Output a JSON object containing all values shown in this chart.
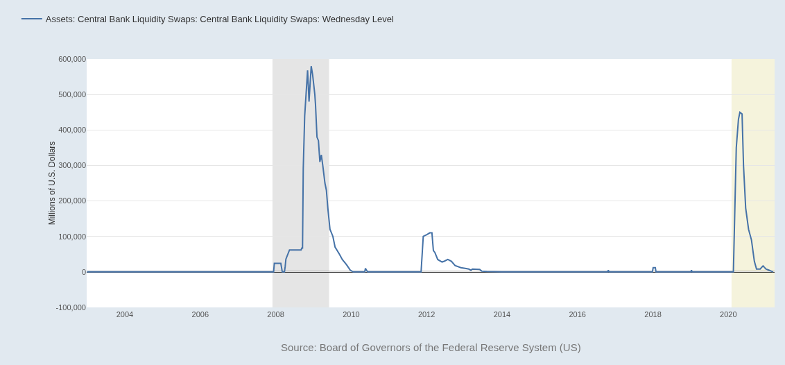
{
  "chart_data": {
    "type": "line",
    "ylabel": "Millions of U.S. Dollars",
    "annotations": [
      "Source: Board of Governors of the Federal Reserve System (US)"
    ],
    "x": [
      "2003-01-01",
      "2007-12-12",
      "2007-12-19",
      "2008-02-20",
      "2008-03-05",
      "2008-03-26",
      "2008-04-02",
      "2008-04-09",
      "2008-05-14",
      "2008-09-03",
      "2008-09-10",
      "2008-09-17",
      "2008-09-24",
      "2008-10-08",
      "2008-11-05",
      "2008-11-19",
      "2008-12-10",
      "2008-12-24",
      "2009-01-14",
      "2009-01-21",
      "2009-02-04",
      "2009-02-18",
      "2009-03-04",
      "2009-03-18",
      "2009-04-01",
      "2009-04-22",
      "2009-05-06",
      "2009-05-20",
      "2009-06-10",
      "2009-07-08",
      "2009-07-29",
      "2009-09-09",
      "2009-10-07",
      "2009-11-18",
      "2009-12-23",
      "2010-01-20",
      "2010-05-12",
      "2010-05-19",
      "2010-06-09",
      "2011-11-09",
      "2011-11-30",
      "2012-01-04",
      "2012-02-01",
      "2012-02-22",
      "2012-03-07",
      "2012-03-21",
      "2012-04-18",
      "2012-05-30",
      "2012-06-20",
      "2012-07-25",
      "2012-08-29",
      "2012-10-03",
      "2012-11-28",
      "2013-01-09",
      "2013-02-13",
      "2013-03-06",
      "2013-03-20",
      "2013-05-29",
      "2013-06-19",
      "2013-08-07",
      "2013-12-25",
      "2016-10-19",
      "2016-10-26",
      "2016-11-02",
      "2017-12-27",
      "2018-01-03",
      "2018-01-24",
      "2018-01-31",
      "2019-01-02",
      "2019-01-09",
      "2019-01-16",
      "2020-02-19",
      "2020-03-18",
      "2020-04-08",
      "2020-04-22",
      "2020-05-13",
      "2020-05-27",
      "2020-06-17",
      "2020-07-15",
      "2020-08-12",
      "2020-09-09",
      "2020-09-30",
      "2020-11-04",
      "2020-12-02",
      "2020-12-30",
      "2021-01-27",
      "2021-03-10"
    ],
    "series": [
      {
        "name": "Assets: Central Bank Liquidity Swaps: Central Bank Liquidity Swaps: Wednesday Level",
        "color": "#4572a7",
        "values": [
          0,
          0,
          24000,
          24000,
          0,
          0,
          15000,
          36000,
          62000,
          62000,
          67000,
          67000,
          290000,
          440000,
          568000,
          480000,
          580000,
          555000,
          500000,
          470000,
          380000,
          370000,
          310000,
          330000,
          300000,
          250000,
          230000,
          180000,
          120000,
          100000,
          70000,
          50000,
          35000,
          20000,
          5000,
          0,
          0,
          10000,
          0,
          0,
          100000,
          105000,
          110000,
          110000,
          60000,
          55000,
          35000,
          28000,
          30000,
          35000,
          30000,
          18000,
          12000,
          10000,
          8000,
          5000,
          8000,
          7000,
          2000,
          1000,
          0,
          0,
          5000,
          0,
          0,
          12000,
          12000,
          0,
          0,
          5000,
          0,
          0,
          350000,
          430000,
          450000,
          445000,
          300000,
          180000,
          120000,
          90000,
          30000,
          8000,
          8000,
          17000,
          8000,
          5000,
          0
        ]
      }
    ],
    "xlim": [
      "2002-12-28",
      "2021-03-24"
    ],
    "xticks": [
      {
        "value": "2004-01-01",
        "label": "2004"
      },
      {
        "value": "2006-01-01",
        "label": "2006"
      },
      {
        "value": "2008-01-01",
        "label": "2008"
      },
      {
        "value": "2010-01-01",
        "label": "2010"
      },
      {
        "value": "2012-01-01",
        "label": "2012"
      },
      {
        "value": "2014-01-01",
        "label": "2014"
      },
      {
        "value": "2016-01-01",
        "label": "2016"
      },
      {
        "value": "2018-01-01",
        "label": "2018"
      },
      {
        "value": "2020-01-01",
        "label": "2020"
      }
    ],
    "ylim": [
      -100000,
      600000
    ],
    "yticks": [
      {
        "value": -100000,
        "label": "-100,000"
      },
      {
        "value": 0,
        "label": "0"
      },
      {
        "value": 100000,
        "label": "100,000"
      },
      {
        "value": 200000,
        "label": "200,000"
      },
      {
        "value": 300000,
        "label": "300,000"
      },
      {
        "value": 400000,
        "label": "400,000"
      },
      {
        "value": 500000,
        "label": "500,000"
      },
      {
        "value": 600000,
        "label": "600,000"
      }
    ],
    "bands": [
      {
        "axis": "x",
        "from": "2007-12-01",
        "to": "2009-06-01",
        "color": "#e5e5e5"
      },
      {
        "axis": "x",
        "from": "2020-02-01",
        "to": "2021-03-24",
        "color": "#f5f3dc"
      }
    ],
    "ref_lines": [
      {
        "axis": "y",
        "value": 0,
        "color": "#000000"
      }
    ],
    "grid": "y",
    "legend": "top left",
    "marker": "none",
    "line_style": "solid"
  }
}
